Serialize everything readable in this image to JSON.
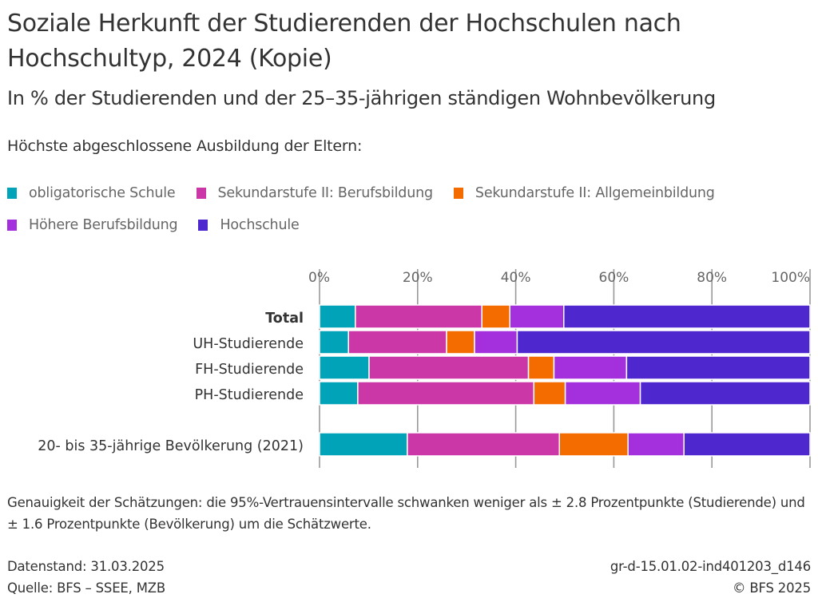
{
  "header": {
    "title": "Soziale Herkunft der Studierenden der Hochschulen nach Hochschultyp, 2024 (Kopie)",
    "subtitle": "In % der Studierenden und der 25–35-jährigen ständigen Wohnbevölkerung"
  },
  "legend": {
    "title": "Höchste abgeschlossene Ausbildung der Eltern:",
    "items": [
      {
        "label": "obligatorische Schule",
        "color": "#00a3b8"
      },
      {
        "label": "Sekundarstufe II: Berufsbildung",
        "color": "#cc37a7"
      },
      {
        "label": "Sekundarstufe II: Allgemeinbildung",
        "color": "#f46b00"
      },
      {
        "label": "Höhere Berufsbildung",
        "color": "#a42fdd"
      },
      {
        "label": "Hochschule",
        "color": "#4f27ce"
      }
    ]
  },
  "chart_data": {
    "type": "bar",
    "orientation": "horizontal",
    "stacked": true,
    "title": "Soziale Herkunft der Studierenden der Hochschulen nach Hochschultyp, 2024 (Kopie)",
    "subtitle": "In % der Studierenden und der 25–35-jährigen ständigen Wohnbevölkerung",
    "xlabel": "",
    "ylabel": "",
    "xlim": [
      0,
      100
    ],
    "x_ticks": [
      "0%",
      "20%",
      "40%",
      "60%",
      "80%",
      "100%"
    ],
    "x_tick_values": [
      0,
      20,
      40,
      60,
      80,
      100
    ],
    "grid": true,
    "legend_position": "top-left",
    "categories": [
      "Total",
      "UH-Studierende",
      "FH-Studierende",
      "PH-Studierende",
      "20- bis 35-jährige Bevölkerung (2021)"
    ],
    "bold_categories": [
      "Total"
    ],
    "series": [
      {
        "name": "obligatorische Schule",
        "color": "#00a3b8",
        "values": [
          7.3,
          5.9,
          10.1,
          7.8,
          17.9
        ]
      },
      {
        "name": "Sekundarstufe II: Berufsbildung",
        "color": "#cc37a7",
        "values": [
          25.8,
          20.0,
          32.5,
          35.9,
          31.0
        ]
      },
      {
        "name": "Sekundarstufe II: Allgemeinbildung",
        "color": "#f46b00",
        "values": [
          5.7,
          5.7,
          5.2,
          6.4,
          14.0
        ]
      },
      {
        "name": "Höhere Berufsbildung",
        "color": "#a42fdd",
        "values": [
          11.0,
          8.7,
          14.8,
          15.3,
          11.4
        ]
      },
      {
        "name": "Hochschule",
        "color": "#4f27ce",
        "values": [
          50.2,
          59.7,
          37.4,
          34.6,
          25.7
        ]
      }
    ]
  },
  "notes": {
    "accuracy": "Genauigkeit der Schätzungen: die 95%-Vertrauensintervalle schwanken weniger als ± 2.8 Prozentpunkte (Studierende) und ± 1.6 Prozentpunkte (Bevölkerung) um die Schätzwerte."
  },
  "footer": {
    "datenstand": "Datenstand: 31.03.2025",
    "quelle": "Quelle: BFS – SSEE, MZB",
    "id": "gr-d-15.01.02-ind401203_d146",
    "copyright": "© BFS 2025"
  }
}
